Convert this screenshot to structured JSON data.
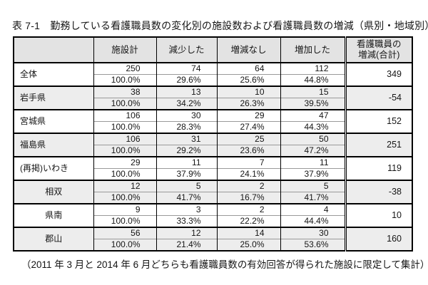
{
  "title": "表 7-1　勤務している看護職員数の変化別の施設数および看護職員数の増減（県別・地域別）",
  "table": {
    "headers": {
      "facilities_total": "施設計",
      "decreased": "減少した",
      "no_change": "増減なし",
      "increased": "増加した",
      "net_change_line1": "看護職員の",
      "net_change_line2": "増減(合計)"
    },
    "rows": [
      {
        "label": "全体",
        "counts": [
          "250",
          "74",
          "64",
          "112"
        ],
        "pcts": [
          "100.0%",
          "29.6%",
          "25.6%",
          "44.8%"
        ],
        "total": "349"
      },
      {
        "label": "岩手県",
        "counts": [
          "38",
          "13",
          "10",
          "15"
        ],
        "pcts": [
          "100.0%",
          "34.2%",
          "26.3%",
          "39.5%"
        ],
        "total": "-54"
      },
      {
        "label": "宮城県",
        "counts": [
          "106",
          "30",
          "29",
          "47"
        ],
        "pcts": [
          "100.0%",
          "28.3%",
          "27.4%",
          "44.3%"
        ],
        "total": "152"
      },
      {
        "label": "福島県",
        "counts": [
          "106",
          "31",
          "25",
          "50"
        ],
        "pcts": [
          "100.0%",
          "29.2%",
          "23.6%",
          "47.2%"
        ],
        "total": "251"
      },
      {
        "label": "(再掲)いわき",
        "counts": [
          "29",
          "11",
          "7",
          "11"
        ],
        "pcts": [
          "100.0%",
          "37.9%",
          "24.1%",
          "37.9%"
        ],
        "total": "119"
      },
      {
        "label": "相双",
        "counts": [
          "12",
          "5",
          "2",
          "5"
        ],
        "pcts": [
          "100.0%",
          "41.7%",
          "16.7%",
          "41.7%"
        ],
        "total": "-38"
      },
      {
        "label": "県南",
        "counts": [
          "9",
          "3",
          "2",
          "4"
        ],
        "pcts": [
          "100.0%",
          "33.3%",
          "22.2%",
          "44.4%"
        ],
        "total": "10"
      },
      {
        "label": "郡山",
        "counts": [
          "56",
          "12",
          "14",
          "30"
        ],
        "pcts": [
          "100.0%",
          "21.4%",
          "25.0%",
          "53.6%"
        ],
        "total": "160"
      }
    ]
  },
  "footnote": "（2011 年 3 月と 2014 年 6 月どちらも看護職員数の有効回答が得られた施設に限定して集計）",
  "colors": {
    "header_bg": "#e3e3e3",
    "alt_row_bg": "#ededed",
    "border": "#000000",
    "thin_line": "#9a9a9a"
  }
}
